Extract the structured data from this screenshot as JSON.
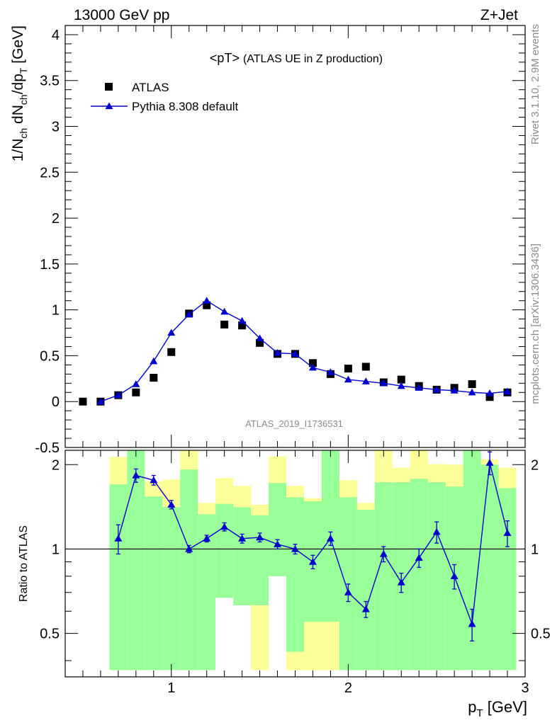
{
  "header": {
    "left": "13000 GeV pp",
    "right": "Z+Jet"
  },
  "side": {
    "rivet": "Rivet 3.1.10,  2.9M events",
    "mcplots": "mcplots.cern.ch [arXiv:1306.3436]"
  },
  "chart_data": [
    {
      "type": "scatter",
      "title": "<pT> (ATLAS UE in Z production)",
      "title_main": "<pT>",
      "title_sub": "(ATLAS UE in Z production)",
      "watermark": "ATLAS_2019_I1736531",
      "ylabel": "1/N_ch dN_ch/dp_T [GeV]",
      "xlim": [
        0.4,
        3.0
      ],
      "ylim": [
        -0.5,
        4.1
      ],
      "yticks": [
        "-0.5",
        "0",
        "0.5",
        "1",
        "1.5",
        "2",
        "2.5",
        "3",
        "3.5",
        "4"
      ],
      "ytick_values": [
        -0.5,
        0,
        0.5,
        1,
        1.5,
        2,
        2.5,
        3,
        3.5,
        4
      ],
      "legend_position": "top-left",
      "legend": [
        "ATLAS",
        "Pythia 8.308 default"
      ],
      "series": [
        {
          "name": "ATLAS",
          "marker": "square",
          "color": "#000000",
          "x": [
            0.5,
            0.6,
            0.7,
            0.8,
            0.9,
            1.0,
            1.1,
            1.2,
            1.3,
            1.4,
            1.5,
            1.6,
            1.7,
            1.8,
            1.9,
            2.0,
            2.1,
            2.2,
            2.3,
            2.4,
            2.5,
            2.6,
            2.7,
            2.8,
            2.9
          ],
          "y": [
            0.0,
            0.0,
            0.07,
            0.1,
            0.26,
            0.54,
            0.96,
            1.05,
            0.84,
            0.83,
            0.64,
            0.52,
            0.52,
            0.42,
            0.3,
            0.36,
            0.38,
            0.21,
            0.24,
            0.17,
            0.13,
            0.15,
            0.19,
            0.05,
            0.1
          ]
        },
        {
          "name": "Pythia 8.308 default",
          "marker": "triangle",
          "color": "#0000cc",
          "x": [
            0.6,
            0.7,
            0.8,
            0.9,
            1.0,
            1.1,
            1.2,
            1.3,
            1.4,
            1.5,
            1.6,
            1.7,
            1.8,
            1.9,
            2.0,
            2.1,
            2.2,
            2.3,
            2.4,
            2.5,
            2.6,
            2.7,
            2.8,
            2.9
          ],
          "y": [
            0.0,
            0.07,
            0.19,
            0.44,
            0.75,
            0.95,
            1.1,
            0.98,
            0.88,
            0.69,
            0.53,
            0.52,
            0.37,
            0.32,
            0.24,
            0.22,
            0.2,
            0.17,
            0.15,
            0.13,
            0.12,
            0.1,
            0.09,
            0.11
          ]
        }
      ]
    },
    {
      "type": "line",
      "ylabel": "Ratio to ATLAS",
      "xlabel": "p_T [GeV]",
      "xlim": [
        0.4,
        3.0
      ],
      "ylim": [
        0.35,
        2.25
      ],
      "xticks": [
        "1",
        "2",
        "3"
      ],
      "xtick_values": [
        1,
        2,
        3
      ],
      "yticks": [
        "0.5",
        "1",
        "2"
      ],
      "ytick_values": [
        0.5,
        1,
        2
      ],
      "reference_line": 1,
      "band_x_edges": [
        0.65,
        0.75,
        0.85,
        0.95,
        1.05,
        1.15,
        1.25,
        1.35,
        1.45,
        1.55,
        1.65,
        1.75,
        1.85,
        1.95,
        2.05,
        2.15,
        2.25,
        2.35,
        2.45,
        2.55,
        2.65,
        2.75,
        2.85,
        2.95
      ],
      "bands": [
        {
          "name": "stat",
          "color": "#99ff99",
          "low": [
            0.37,
            0.37,
            0.37,
            0.37,
            0.37,
            0.37,
            0.67,
            0.63,
            0.63,
            0.8,
            0.43,
            0.55,
            0.55,
            0.37,
            0.37,
            0.37,
            0.37,
            0.37,
            0.37,
            0.37,
            0.37,
            0.37,
            0.37
          ],
          "high": [
            1.7,
            2.25,
            1.54,
            1.41,
            1.92,
            1.33,
            1.45,
            1.41,
            1.32,
            1.72,
            1.53,
            1.48,
            2.25,
            1.53,
            1.38,
            1.73,
            1.73,
            1.78,
            1.73,
            1.67,
            2.25,
            2.0,
            1.65
          ]
        },
        {
          "name": "total",
          "color": "#ffff99",
          "low": [
            0.37,
            0.37,
            0.72,
            0.7,
            0.37,
            0.83,
            0.68,
            0.71,
            0.37,
            0.82,
            0.37,
            0.37,
            0.37,
            0.64,
            0.37,
            0.37,
            0.54,
            0.37,
            0.37,
            0.37,
            0.58,
            0.37,
            0.54
          ],
          "high": [
            2.13,
            2.25,
            1.74,
            1.77,
            2.25,
            1.46,
            1.79,
            1.68,
            1.44,
            2.14,
            1.68,
            1.52,
            2.25,
            1.76,
            1.46,
            2.25,
            1.95,
            2.25,
            2.01,
            2.0,
            2.19,
            2.09,
            1.95
          ]
        }
      ],
      "series": [
        {
          "name": "Pythia 8.308 default",
          "color": "#0000cc",
          "x": [
            0.7,
            0.8,
            0.9,
            1.0,
            1.1,
            1.2,
            1.3,
            1.4,
            1.5,
            1.6,
            1.7,
            1.8,
            1.9,
            2.0,
            2.1,
            2.2,
            2.3,
            2.4,
            2.5,
            2.6,
            2.7,
            2.8,
            2.9
          ],
          "y": [
            1.09,
            1.83,
            1.76,
            1.44,
            1.0,
            1.09,
            1.2,
            1.09,
            1.1,
            1.04,
            1.0,
            0.9,
            1.09,
            0.7,
            0.61,
            0.96,
            0.76,
            0.93,
            1.15,
            0.8,
            0.54,
            2.03,
            1.14
          ],
          "err": [
            0.13,
            0.1,
            0.07,
            0.05,
            0.03,
            0.03,
            0.04,
            0.04,
            0.04,
            0.04,
            0.04,
            0.05,
            0.06,
            0.05,
            0.04,
            0.06,
            0.06,
            0.07,
            0.1,
            0.08,
            0.07,
            0.19,
            0.12
          ]
        }
      ]
    }
  ]
}
